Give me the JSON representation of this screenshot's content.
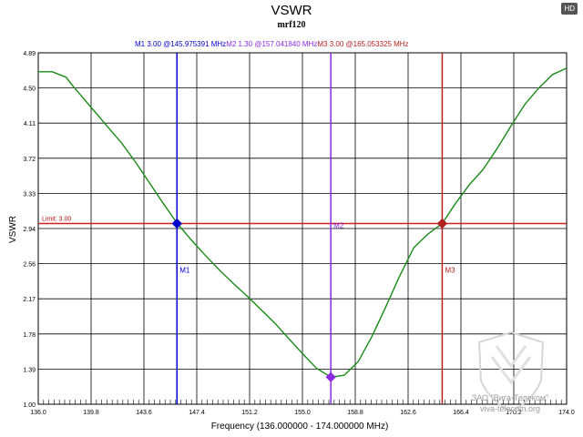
{
  "badge": "HD",
  "chart_data": {
    "type": "line",
    "title": "VSWR",
    "subtitle": "mrf120",
    "xlabel": "Frequency (136.000000 - 174.000000 MHz)",
    "ylabel": "VSWR",
    "xlim": [
      136.0,
      174.0
    ],
    "ylim": [
      1.0,
      4.89
    ],
    "x_ticks": [
      "136.0",
      "139.8",
      "143.6",
      "147.4",
      "151.2",
      "155.0",
      "158.8",
      "162.6",
      "166.4",
      "170.2",
      "174.0"
    ],
    "y_ticks": [
      "1.00",
      "1.39",
      "1.78",
      "2.17",
      "2.56",
      "2.94",
      "3.33",
      "3.72",
      "4.11",
      "4.50",
      "4.89"
    ],
    "grid": true,
    "limit": {
      "label": "Limit: 3.00",
      "value": 3.0,
      "color": "#cc2222"
    },
    "series": [
      {
        "name": "VSWR",
        "color": "#1a8a1a",
        "x": [
          136.0,
          137.0,
          138.0,
          138.5,
          139.0,
          140.0,
          141.0,
          142.0,
          143.0,
          144.0,
          145.0,
          146.0,
          147.0,
          148.0,
          149.0,
          150.0,
          151.0,
          152.0,
          153.0,
          154.0,
          155.0,
          156.0,
          157.04,
          158.0,
          159.0,
          160.0,
          161.0,
          162.0,
          163.0,
          164.0,
          165.05,
          166.0,
          167.0,
          168.0,
          169.0,
          170.0,
          171.0,
          172.0,
          173.0,
          174.0
        ],
        "values": [
          4.68,
          4.68,
          4.62,
          4.52,
          4.43,
          4.25,
          4.07,
          3.89,
          3.68,
          3.45,
          3.22,
          3.0,
          2.82,
          2.65,
          2.49,
          2.34,
          2.2,
          2.05,
          1.9,
          1.73,
          1.56,
          1.4,
          1.3,
          1.32,
          1.47,
          1.75,
          2.08,
          2.42,
          2.73,
          2.88,
          3.0,
          3.22,
          3.43,
          3.6,
          3.83,
          4.08,
          4.32,
          4.5,
          4.65,
          4.72
        ]
      }
    ],
    "markers": [
      {
        "name": "M1",
        "vswr": "3.00",
        "freq": "145.975391 MHz",
        "x": 145.975391,
        "y": 3.0,
        "color": "#0000cc",
        "tag_side": "below"
      },
      {
        "name": "M2",
        "vswr": "1.30",
        "freq": "157.041840 MHz",
        "x": 157.04184,
        "y": 1.3,
        "color": "#8a2be2",
        "tag_side": "above"
      },
      {
        "name": "M3",
        "vswr": "3.00",
        "freq": "165.053325 MHz",
        "x": 165.053325,
        "y": 3.0,
        "color": "#b22222",
        "tag_side": "below"
      }
    ]
  },
  "watermark": {
    "line1": "ЗАО \"Вига-Телеком\"",
    "line2": "viva-telecom.org"
  }
}
